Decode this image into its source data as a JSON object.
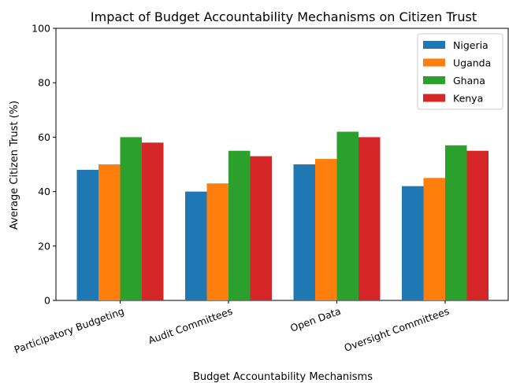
{
  "chart_data": {
    "type": "bar",
    "title": "Impact of Budget Accountability Mechanisms on Citizen Trust",
    "xlabel": "Budget Accountability Mechanisms",
    "ylabel": "Average Citizen Trust (%)",
    "ylim": [
      0,
      100
    ],
    "yticks": [
      0,
      20,
      40,
      60,
      80,
      100
    ],
    "grid": false,
    "legend_position": "top-right",
    "categories": [
      "Participatory Budgeting",
      "Audit Committees",
      "Open Data",
      "Oversight Committees"
    ],
    "series": [
      {
        "name": "Nigeria",
        "color": "#1f77b4",
        "values": [
          48,
          40,
          50,
          42
        ]
      },
      {
        "name": "Uganda",
        "color": "#ff7f0e",
        "values": [
          50,
          43,
          52,
          45
        ]
      },
      {
        "name": "Ghana",
        "color": "#2ca02c",
        "values": [
          60,
          55,
          62,
          57
        ]
      },
      {
        "name": "Kenya",
        "color": "#d62728",
        "values": [
          58,
          53,
          60,
          55
        ]
      }
    ]
  }
}
